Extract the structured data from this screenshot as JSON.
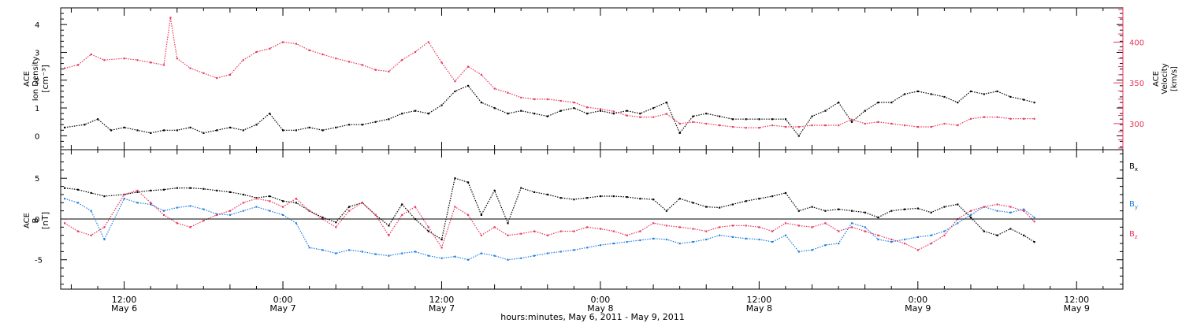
{
  "footer": {
    "xlabel": "hours:minutes, May  6, 2011 - May  9, 2011"
  },
  "x_ticks": [
    {
      "t": 12,
      "time": "12:00",
      "day": "May 6"
    },
    {
      "t": 24,
      "time": "0:00",
      "day": "May 7"
    },
    {
      "t": 36,
      "time": "12:00",
      "day": "May 7"
    },
    {
      "t": 48,
      "time": "0:00",
      "day": "May 8"
    },
    {
      "t": 60,
      "time": "12:00",
      "day": "May 8"
    },
    {
      "t": 72,
      "time": "0:00",
      "day": "May 9"
    },
    {
      "t": 84,
      "time": "12:00",
      "day": "May 9"
    }
  ],
  "chart_data": [
    {
      "type": "scatter",
      "panel": "top",
      "xlabel": "hours:minutes, May  6, 2011 - May  9, 2011",
      "x_unit": "hours since May 6 00:00",
      "xlim": [
        7.2,
        87.5
      ],
      "y_left": {
        "label_line1": "ACE",
        "label_line2": "Ion Density",
        "unit": "[cm⁻³]",
        "ylim": [
          -0.5,
          4.6
        ],
        "ticks": [
          0,
          1,
          2,
          3,
          4
        ]
      },
      "y_right": {
        "label_line1": "ACE",
        "label_line2": "Velocity",
        "unit": "[km/s]",
        "ylim": [
          268,
          442
        ],
        "ticks": [
          300,
          350,
          400
        ],
        "color": "#e8365d"
      },
      "series": [
        {
          "name": "Ion Density",
          "color": "#000000",
          "axis": "left",
          "x": [
            7.5,
            9,
            10,
            11,
            12,
            13,
            14,
            15,
            16,
            17,
            18,
            19,
            20,
            21,
            22,
            23,
            24,
            25,
            26,
            27,
            28,
            29,
            30,
            31,
            32,
            33,
            34,
            35,
            36,
            37,
            38,
            39,
            40,
            41,
            42,
            43,
            44,
            45,
            46,
            47,
            48,
            49,
            50,
            51,
            52,
            53,
            54,
            55,
            56,
            57,
            58,
            59,
            60,
            61,
            62,
            63,
            64,
            65,
            66,
            67,
            68,
            69,
            70,
            71,
            72,
            73,
            74,
            75,
            76,
            77,
            78,
            79,
            80,
            80.8
          ],
          "y": [
            0.3,
            0.4,
            0.6,
            0.2,
            0.3,
            0.2,
            0.1,
            0.2,
            0.2,
            0.3,
            0.1,
            0.2,
            0.3,
            0.2,
            0.4,
            0.8,
            0.2,
            0.2,
            0.3,
            0.2,
            0.3,
            0.4,
            0.4,
            0.5,
            0.6,
            0.8,
            0.9,
            0.8,
            1.1,
            1.6,
            1.8,
            1.2,
            1.0,
            0.8,
            0.9,
            0.8,
            0.7,
            0.9,
            1.0,
            0.8,
            0.9,
            0.8,
            0.9,
            0.8,
            1.0,
            1.2,
            0.1,
            0.7,
            0.8,
            0.7,
            0.6,
            0.6,
            0.6,
            0.6,
            0.6,
            0.0,
            0.7,
            0.9,
            1.2,
            0.5,
            0.9,
            1.2,
            1.2,
            1.5,
            1.6,
            1.5,
            1.4,
            1.2,
            1.6,
            1.5,
            1.6,
            1.4,
            1.3,
            1.2
          ]
        },
        {
          "name": "Velocity",
          "color": "#e8365d",
          "axis": "right",
          "x": [
            7.5,
            8.5,
            9.5,
            10.5,
            12,
            13,
            14,
            15,
            15.5,
            16,
            17,
            18,
            19,
            20,
            21,
            22,
            23,
            24,
            25,
            26,
            27,
            28,
            29,
            30,
            31,
            32,
            33,
            34,
            35,
            36,
            37,
            38,
            39,
            40,
            41,
            42,
            43,
            44,
            45,
            46,
            47,
            48,
            49,
            50,
            51,
            52,
            53,
            54,
            55,
            56,
            57,
            58,
            59,
            60,
            61,
            62,
            63,
            64,
            65,
            66,
            67,
            68,
            69,
            70,
            71,
            72,
            73,
            74,
            75,
            76,
            77,
            78,
            79,
            80,
            80.8
          ],
          "y": [
            368,
            372,
            385,
            378,
            380,
            378,
            375,
            372,
            430,
            380,
            368,
            362,
            356,
            360,
            378,
            388,
            392,
            400,
            398,
            390,
            385,
            380,
            376,
            372,
            366,
            364,
            378,
            388,
            400,
            375,
            352,
            370,
            360,
            343,
            338,
            332,
            330,
            330,
            328,
            326,
            320,
            318,
            315,
            310,
            308,
            308,
            312,
            300,
            302,
            300,
            298,
            296,
            295,
            295,
            298,
            296,
            296,
            298,
            298,
            298,
            305,
            300,
            302,
            300,
            298,
            296,
            296,
            300,
            298,
            306,
            308,
            308,
            306,
            306,
            306
          ]
        }
      ]
    },
    {
      "type": "scatter",
      "panel": "bottom",
      "xlabel": "hours:minutes, May  6, 2011 - May  9, 2011",
      "x_unit": "hours since May 6 00:00",
      "xlim": [
        7.2,
        87.5
      ],
      "y_left": {
        "label_line1": "ACE",
        "label_line2": "B",
        "unit": "[nT]",
        "ylim": [
          -8.6,
          8.5
        ],
        "ticks": [
          -5,
          0,
          5
        ]
      },
      "zero_line": true,
      "series": [
        {
          "name": "Bx",
          "label_main": "B",
          "label_sub": "x",
          "color": "#000000",
          "x": [
            7.5,
            8.5,
            9.5,
            10.5,
            12,
            13,
            14,
            15,
            16,
            17,
            18,
            19,
            20,
            21,
            22,
            23,
            24,
            25,
            26,
            27,
            28,
            29,
            30,
            31,
            32,
            33,
            34,
            35,
            36,
            37,
            38,
            39,
            40,
            41,
            42,
            43,
            44,
            45,
            46,
            47,
            48,
            49,
            50,
            51,
            52,
            53,
            54,
            55,
            56,
            57,
            58,
            59,
            60,
            61,
            62,
            63,
            64,
            65,
            66,
            67,
            68,
            69,
            70,
            71,
            72,
            73,
            74,
            75,
            76,
            77,
            78,
            79,
            80,
            80.8
          ],
          "y": [
            3.8,
            3.6,
            3.2,
            2.8,
            3.0,
            3.3,
            3.5,
            3.6,
            3.8,
            3.8,
            3.7,
            3.5,
            3.3,
            3.0,
            2.6,
            2.8,
            2.2,
            2.0,
            1.0,
            0.2,
            -0.4,
            1.5,
            2.0,
            0.5,
            -0.8,
            1.8,
            0.0,
            -1.5,
            -2.5,
            5.0,
            4.5,
            0.5,
            3.5,
            -0.5,
            3.8,
            3.3,
            3.0,
            2.6,
            2.4,
            2.6,
            2.8,
            2.8,
            2.7,
            2.5,
            2.4,
            1.0,
            2.5,
            2.0,
            1.5,
            1.4,
            1.8,
            2.2,
            2.5,
            2.8,
            3.2,
            1.0,
            1.5,
            1.0,
            1.2,
            1.0,
            0.8,
            0.2,
            1.0,
            1.2,
            1.3,
            0.8,
            1.5,
            1.8,
            0.2,
            -1.5,
            -2.0,
            -1.2,
            -2.0,
            -2.8
          ]
        },
        {
          "name": "By",
          "label_main": "B",
          "label_sub": "y",
          "color": "#1f7fe0",
          "x": [
            7.5,
            8.5,
            9.5,
            10.5,
            12,
            13,
            14,
            15,
            16,
            17,
            18,
            19,
            20,
            21,
            22,
            23,
            24,
            25,
            26,
            27,
            28,
            29,
            30,
            31,
            32,
            33,
            34,
            35,
            36,
            37,
            38,
            39,
            40,
            41,
            42,
            43,
            44,
            45,
            46,
            47,
            48,
            49,
            50,
            51,
            52,
            53,
            54,
            55,
            56,
            57,
            58,
            59,
            60,
            61,
            62,
            63,
            64,
            65,
            66,
            67,
            68,
            69,
            70,
            71,
            72,
            73,
            74,
            75,
            76,
            77,
            78,
            79,
            80,
            80.8
          ],
          "y": [
            2.5,
            2.0,
            1.0,
            -2.5,
            2.5,
            2.0,
            1.8,
            1.0,
            1.4,
            1.6,
            1.2,
            0.6,
            0.5,
            1.0,
            1.5,
            1.0,
            0.5,
            -0.5,
            -3.5,
            -3.8,
            -4.2,
            -3.8,
            -4.0,
            -4.3,
            -4.5,
            -4.2,
            -4.0,
            -4.5,
            -4.8,
            -4.6,
            -5.0,
            -4.2,
            -4.5,
            -5.0,
            -4.8,
            -4.5,
            -4.2,
            -4.0,
            -3.8,
            -3.5,
            -3.2,
            -3.0,
            -2.8,
            -2.6,
            -2.4,
            -2.5,
            -3.0,
            -2.8,
            -2.5,
            -2.0,
            -2.2,
            -2.4,
            -2.5,
            -2.8,
            -2.0,
            -4.0,
            -3.8,
            -3.2,
            -3.0,
            -0.5,
            -1.0,
            -2.5,
            -2.8,
            -2.5,
            -2.2,
            -2.0,
            -1.5,
            -0.5,
            0.5,
            1.5,
            1.0,
            0.8,
            1.2,
            0.2
          ]
        },
        {
          "name": "Bz",
          "label_main": "B",
          "label_sub": "z",
          "color": "#e8365d",
          "x": [
            7.5,
            8.5,
            9.5,
            10.5,
            12,
            13,
            14,
            15,
            16,
            17,
            18,
            19,
            20,
            21,
            22,
            23,
            24,
            25,
            26,
            27,
            28,
            29,
            30,
            31,
            32,
            33,
            34,
            35,
            36,
            37,
            38,
            39,
            40,
            41,
            42,
            43,
            44,
            45,
            46,
            47,
            48,
            49,
            50,
            51,
            52,
            53,
            54,
            55,
            56,
            57,
            58,
            59,
            60,
            61,
            62,
            63,
            64,
            65,
            66,
            67,
            68,
            69,
            70,
            71,
            72,
            73,
            74,
            75,
            76,
            77,
            78,
            79,
            80,
            80.8
          ],
          "y": [
            -0.5,
            -1.5,
            -2.0,
            -1.0,
            3.0,
            3.5,
            2.0,
            0.5,
            -0.5,
            -1.0,
            -0.2,
            0.5,
            1.0,
            2.0,
            2.5,
            2.2,
            1.5,
            2.5,
            1.0,
            0.0,
            -1.0,
            1.0,
            2.0,
            0.5,
            -2.0,
            0.5,
            1.5,
            -1.0,
            -3.5,
            1.5,
            0.5,
            -2.0,
            -1.0,
            -2.0,
            -1.8,
            -1.5,
            -2.0,
            -1.5,
            -1.5,
            -1.0,
            -1.2,
            -1.5,
            -2.0,
            -1.5,
            -0.5,
            -0.8,
            -1.0,
            -1.2,
            -1.5,
            -1.0,
            -0.8,
            -0.8,
            -1.0,
            -1.5,
            -0.5,
            -0.8,
            -1.0,
            -0.5,
            -1.5,
            -1.0,
            -1.5,
            -2.0,
            -2.5,
            -3.0,
            -3.8,
            -3.0,
            -2.0,
            0.0,
            1.0,
            1.5,
            1.8,
            1.5,
            1.0,
            -0.3
          ]
        }
      ]
    }
  ]
}
